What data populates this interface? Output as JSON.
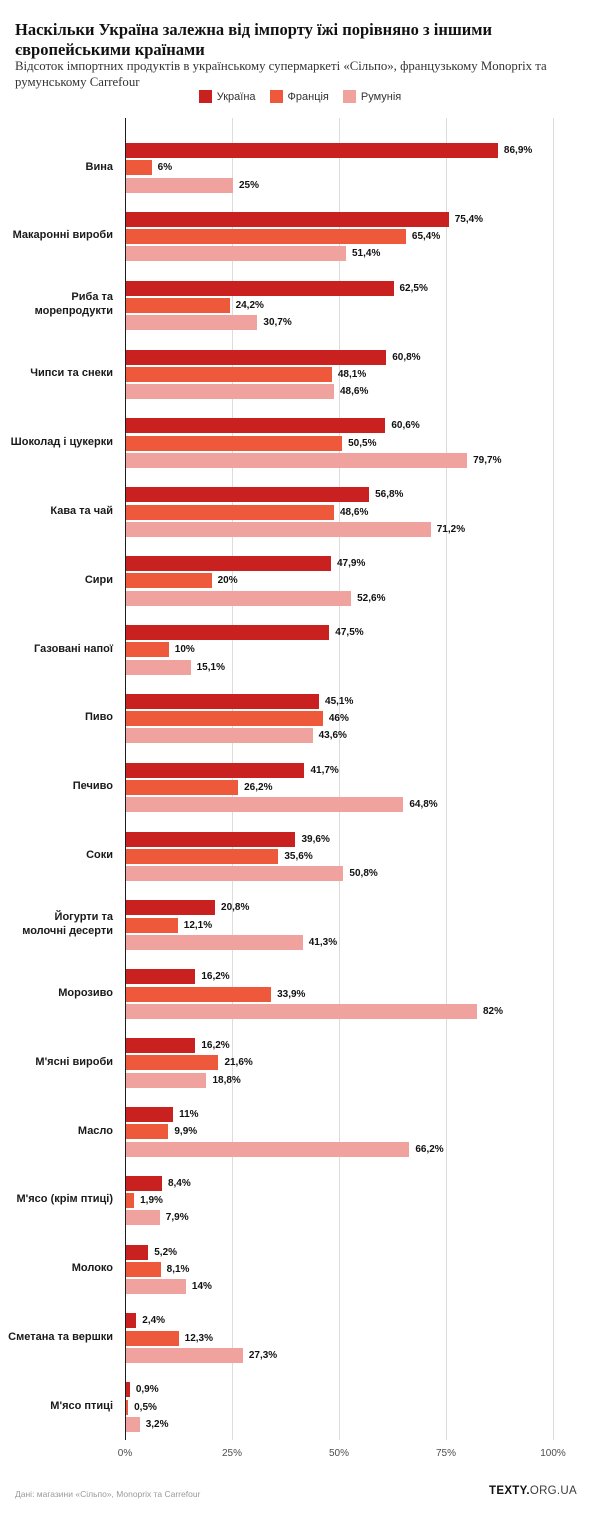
{
  "title": "Наскільки Україна залежна від імпорту їжі порівняно з іншими європейськими країнами",
  "subtitle": "Відсоток імпортних продуктів в українському супермаркеті «Сільпо», французькому Monoprix та румунському Carrefour",
  "footer": {
    "source": "Дані: магазини «Сільпо», Monoprix та Carrefour",
    "logo_bold": "TEXTY.",
    "logo_rest": "ORG.UA"
  },
  "chart_data": {
    "type": "bar",
    "orientation": "horizontal",
    "grid": true,
    "legend_position": "top-center",
    "xlim": [
      0,
      100
    ],
    "x_ticks": [
      {
        "label": "0%",
        "value": 0
      },
      {
        "label": "25%",
        "value": 25
      },
      {
        "label": "50%",
        "value": 50
      },
      {
        "label": "75%",
        "value": 75
      },
      {
        "label": "100%",
        "value": 100
      }
    ],
    "categories": [
      "Вина",
      "Макаронні вироби",
      "Риба та морепродукти",
      "Чипси та снеки",
      "Шоколад і цукерки",
      "Кава та чай",
      "Сири",
      "Газовані напої",
      "Пиво",
      "Печиво",
      "Соки",
      "Йогурти та молочні десерти",
      "Морозиво",
      "М'ясні вироби",
      "Масло",
      "М'ясо (крім птиці)",
      "Молоко",
      "Сметана та вершки",
      "М'ясо птиці"
    ],
    "series": [
      {
        "name": "Україна",
        "color": "#c9211f",
        "values": [
          86.9,
          75.4,
          62.5,
          60.8,
          60.6,
          56.8,
          47.9,
          47.5,
          45.1,
          41.7,
          39.6,
          20.8,
          16.2,
          16.2,
          11,
          8.4,
          5.2,
          2.4,
          0.9
        ],
        "labels": [
          "86,9%",
          "75,4%",
          "62,5%",
          "60,8%",
          "60,6%",
          "56,8%",
          "47,9%",
          "47,5%",
          "45,1%",
          "41,7%",
          "39,6%",
          "20,8%",
          "16,2%",
          "16,2%",
          "11%",
          "8,4%",
          "5,2%",
          "2,4%",
          "0,9%"
        ]
      },
      {
        "name": "Франція",
        "color": "#ed593a",
        "values": [
          6,
          65.4,
          24.2,
          48.1,
          50.5,
          48.6,
          20,
          10,
          46,
          26.2,
          35.6,
          12.1,
          33.9,
          21.6,
          9.9,
          1.9,
          8.1,
          12.3,
          0.5
        ],
        "labels": [
          "6%",
          "65,4%",
          "24,2%",
          "48,1%",
          "50,5%",
          "48,6%",
          "20%",
          "10%",
          "46%",
          "26,2%",
          "35,6%",
          "12,1%",
          "33,9%",
          "21,6%",
          "9,9%",
          "1,9%",
          "8,1%",
          "12,3%",
          "0,5%"
        ]
      },
      {
        "name": "Румунія",
        "color": "#f0a29f",
        "values": [
          25,
          51.4,
          30.7,
          48.6,
          79.7,
          71.2,
          52.6,
          15.1,
          43.6,
          64.8,
          50.8,
          41.3,
          82,
          18.8,
          66.2,
          7.9,
          14,
          27.3,
          3.2
        ],
        "labels": [
          "25%",
          "51,4%",
          "30,7%",
          "48,6%",
          "79,7%",
          "71,2%",
          "52,6%",
          "15,1%",
          "43,6%",
          "64,8%",
          "50,8%",
          "41,3%",
          "82%",
          "18,8%",
          "66,2%",
          "7,9%",
          "14%",
          "27,3%",
          "3,2%"
        ]
      }
    ]
  }
}
